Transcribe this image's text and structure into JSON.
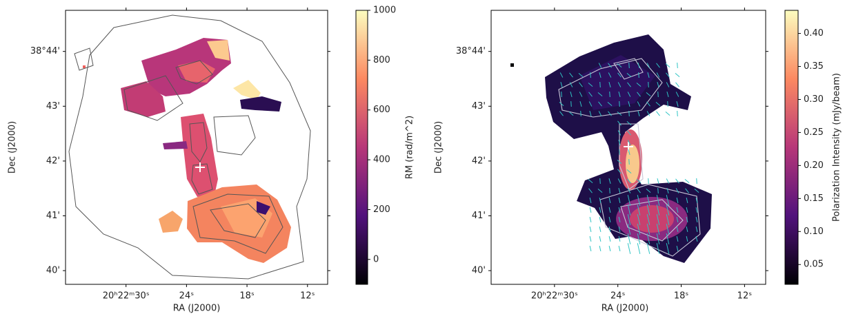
{
  "chart_data": [
    {
      "type": "image",
      "xlabel": "RA (J2000)",
      "ylabel": "Dec (J2000)",
      "xlim": [
        36,
        10
      ],
      "xticks": [
        {
          "value": 30,
          "label": "20ʰ22ᵐ30ˢ"
        },
        {
          "value": 24,
          "label": "24ˢ"
        },
        {
          "value": 18,
          "label": "18ˢ"
        },
        {
          "value": 12,
          "label": "12ˢ"
        }
      ],
      "ylim": [
        39.75,
        44.75
      ],
      "yticks": [
        {
          "value": 44,
          "label": "38°44'"
        },
        {
          "value": 43,
          "label": "43'"
        },
        {
          "value": 42,
          "label": "42'"
        },
        {
          "value": 41,
          "label": "41'"
        },
        {
          "value": 40,
          "label": "40'"
        }
      ],
      "colorbar": {
        "label": "RM (rad/m^2)",
        "clim": [
          -100,
          1000
        ],
        "ticks": [
          0,
          200,
          400,
          600,
          800,
          1000
        ],
        "cmap": [
          "#000004",
          "#51127c",
          "#b73779",
          "#fc8961",
          "#fcfdbf"
        ]
      }
    },
    {
      "type": "image",
      "xlabel": "RA (J2000)",
      "ylabel": "Dec (J2000)",
      "xlim": [
        36,
        10
      ],
      "xticks": [
        {
          "value": 30,
          "label": "20ʰ22ᵐ30ˢ"
        },
        {
          "value": 24,
          "label": "24ˢ"
        },
        {
          "value": 18,
          "label": "18ˢ"
        },
        {
          "value": 12,
          "label": "12ˢ"
        }
      ],
      "ylim": [
        39.75,
        44.75
      ],
      "yticks": [
        {
          "value": 44,
          "label": "38°44'"
        },
        {
          "value": 43,
          "label": "43'"
        },
        {
          "value": 42,
          "label": "42'"
        },
        {
          "value": 41,
          "label": "41'"
        },
        {
          "value": 40,
          "label": "40'"
        }
      ],
      "colorbar": {
        "label": "Polarization Intensity (mJy/beam)",
        "clim": [
          0.02,
          0.435
        ],
        "ticks": [
          0.05,
          {
            "value": 0.1,
            "label": "0.10"
          },
          0.15,
          {
            "value": 0.2,
            "label": "0.20"
          },
          0.25,
          {
            "value": 0.3,
            "label": "0.30"
          },
          0.35,
          {
            "value": 0.4,
            "label": "0.40"
          }
        ],
        "cmap": [
          "#000004",
          "#51127c",
          "#b73779",
          "#fc8961",
          "#fcfdbf"
        ]
      }
    }
  ]
}
